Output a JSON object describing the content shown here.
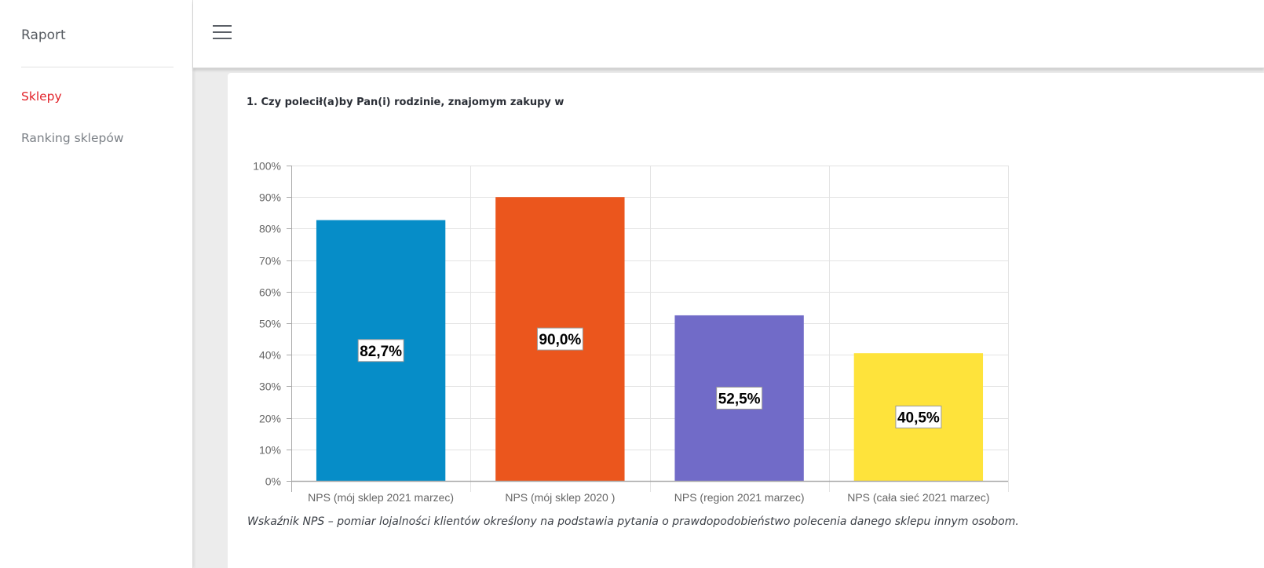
{
  "sidebar": {
    "brand": "Raport",
    "items": [
      {
        "label": "Sklepy",
        "active": true
      },
      {
        "label": "Ranking sklepów",
        "active": false
      }
    ]
  },
  "topbar": {
    "menu_icon": "hamburger-menu-icon"
  },
  "main": {
    "question": "1. Czy polecił(a)by Pan(i) rodzinie, znajomym zakupy w",
    "note": "Wskaźnik NPS – pomiar lojalności klientów określony na podstawia pytania o prawdopodobieństwo polecenia danego sklepu innym osobom."
  },
  "chart_data": {
    "type": "bar",
    "title": "",
    "xlabel": "",
    "ylabel": "",
    "categories": [
      "NPS (mój sklep 2021 marzec)",
      "NPS (mój sklep 2020 )",
      "NPS (region 2021 marzec)",
      "NPS (cała sieć 2021 marzec)"
    ],
    "values": [
      82.7,
      90.0,
      52.5,
      40.5
    ],
    "data_labels": [
      "82,7%",
      "90,0%",
      "52,5%",
      "40,5%"
    ],
    "colors": [
      "#068dc8",
      "#eb561d",
      "#716bc8",
      "#fee33b"
    ],
    "ylim": [
      0,
      100
    ],
    "yticks": [
      0,
      10,
      20,
      30,
      40,
      50,
      60,
      70,
      80,
      90,
      100
    ],
    "ytick_labels": [
      "0%",
      "10%",
      "20%",
      "30%",
      "40%",
      "50%",
      "60%",
      "70%",
      "80%",
      "90%",
      "100%"
    ],
    "grid": true,
    "legend": "none"
  }
}
